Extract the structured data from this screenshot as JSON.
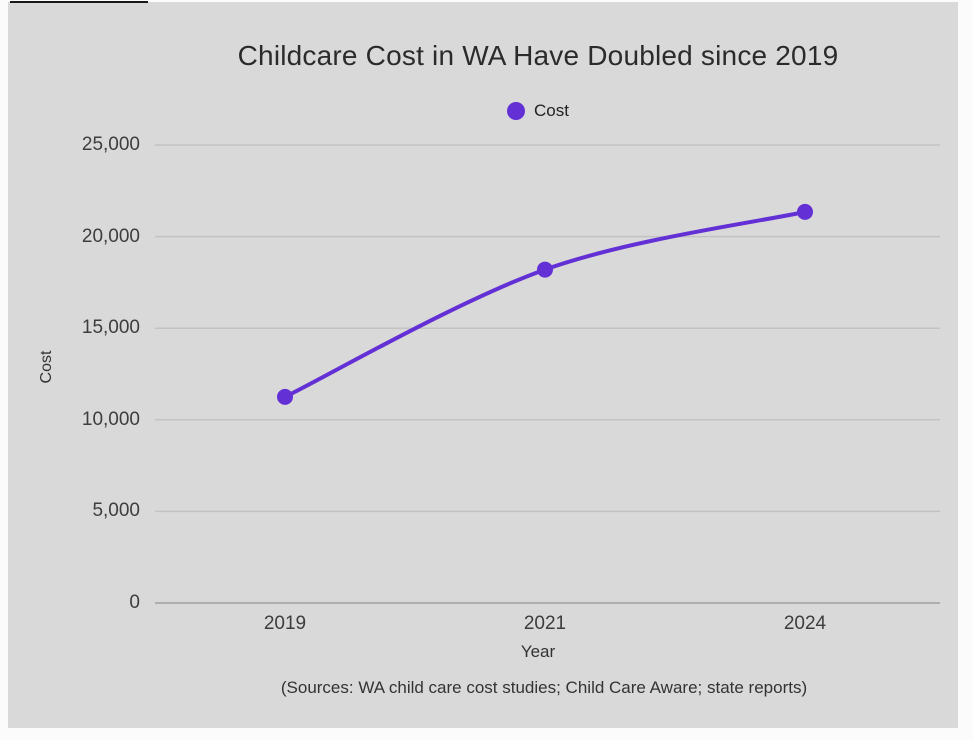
{
  "chart": {
    "background_color": "#d9d9d9",
    "page_color": "#fbfbfb"
  },
  "chart_data": {
    "type": "line",
    "title": "Childcare Cost in WA Have Doubled since 2019",
    "x": [
      "2019",
      "2021",
      "2024"
    ],
    "series": [
      {
        "name": "Cost",
        "values": [
          11250,
          18200,
          21350
        ]
      }
    ],
    "xlabel": "Year",
    "ylabel": "Cost",
    "ylim": [
      0,
      25000
    ],
    "yticks": [
      0,
      5000,
      10000,
      15000,
      20000,
      25000
    ],
    "ytick_labels": [
      "0",
      "5,000",
      "10,000",
      "15,000",
      "20,000",
      "25,000"
    ],
    "grid": true,
    "smooth": true,
    "legend_position": "top-center",
    "line_color": "#6330d6",
    "marker_color": "#6330d6",
    "grid_color": "#c2c2c2",
    "zero_line_color": "#a0a0a0",
    "source_note": "(Sources: WA child care cost studies; Child Care Aware; state reports)"
  }
}
